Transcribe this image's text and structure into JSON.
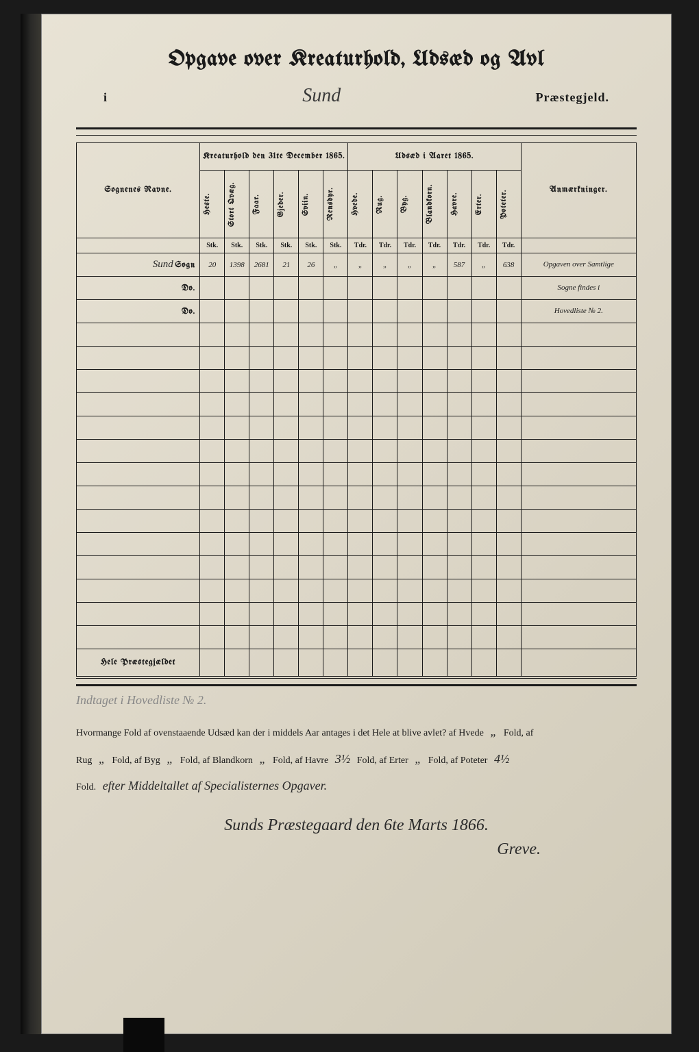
{
  "title": "Opgave over Kreaturhold, Udsæd og Avl",
  "subtitle": {
    "prefix": "i",
    "parish_name": "Sund",
    "suffix": "Præstegjeld."
  },
  "table": {
    "col_sogn": "Sognenes Navne.",
    "group1": "Kreaturhold den 31te December 1865.",
    "group2": "Udsæd i Aaret 1865.",
    "col_notes": "Anmærkninger.",
    "columns_livestock": [
      "Heste.",
      "Stort Qvæg.",
      "Faar.",
      "Gjeder.",
      "Sviin.",
      "Rensdyr."
    ],
    "columns_seed": [
      "Hvede.",
      "Rug.",
      "Byg.",
      "Blandkorn.",
      "Havre.",
      "Erter.",
      "Poteter."
    ],
    "unit_livestock": "Stk.",
    "unit_seed": "Tdr.",
    "rows": [
      {
        "name": "Sund",
        "label": "Sogn",
        "livestock": [
          "20",
          "1398",
          "2681",
          "21",
          "26",
          "„"
        ],
        "seed": [
          "„",
          "„",
          "„",
          "„",
          "587",
          "„",
          "638"
        ],
        "note": "Opgaven over Samtlige"
      },
      {
        "name": "",
        "label": "Do.",
        "livestock": [
          "",
          "",
          "",
          "",
          "",
          ""
        ],
        "seed": [
          "",
          "",
          "",
          "",
          "",
          "",
          ""
        ],
        "note": "Sogne findes i"
      },
      {
        "name": "",
        "label": "Do.",
        "livestock": [
          "",
          "",
          "",
          "",
          "",
          ""
        ],
        "seed": [
          "",
          "",
          "",
          "",
          "",
          "",
          ""
        ],
        "note": "Hovedliste № 2."
      }
    ],
    "footer_label": "Hele Præstegjældet"
  },
  "faint_note": "Indtaget i Hovedliste № 2.",
  "fold_text": {
    "intro": "Hvormange Fold af ovenstaaende Udsæd kan der i middels Aar antages i det Hele at blive avlet? af Hvede",
    "rug": "Rug",
    "byg": "Fold, af Byg",
    "bland": "Fold, af Blandkorn",
    "havre": "Fold, af Havre",
    "havre_val": "3½",
    "erter": "Fold, af Erter",
    "poteter": "Fold, af Poteter",
    "poteter_val": "4½",
    "fold_end": "Fold.",
    "extra": "efter Middeltallet af Specialisternes Opgaver."
  },
  "signature": {
    "place_date": "Sunds Præstegaard den 6te Marts 1866.",
    "name": "Greve."
  },
  "colors": {
    "ink": "#1a1a1a",
    "paper": "#ddd7c8",
    "hw": "#2a2a2a"
  }
}
